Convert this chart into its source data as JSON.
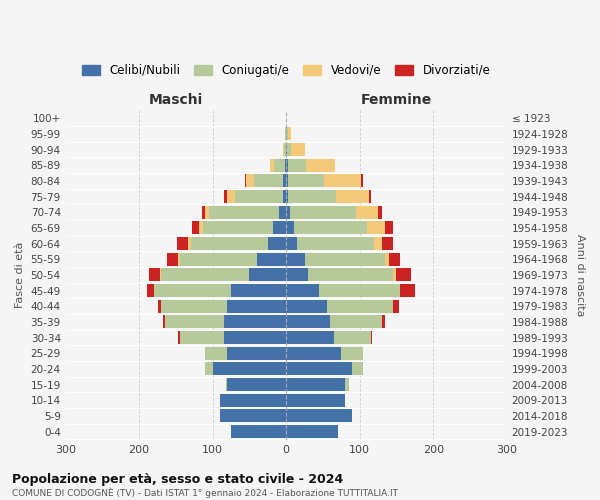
{
  "age_groups": [
    "0-4",
    "5-9",
    "10-14",
    "15-19",
    "20-24",
    "25-29",
    "30-34",
    "35-39",
    "40-44",
    "45-49",
    "50-54",
    "55-59",
    "60-64",
    "65-69",
    "70-74",
    "75-79",
    "80-84",
    "85-89",
    "90-94",
    "95-99",
    "100+"
  ],
  "birth_years": [
    "2019-2023",
    "2014-2018",
    "2009-2013",
    "2004-2008",
    "1999-2003",
    "1994-1998",
    "1989-1993",
    "1984-1988",
    "1979-1983",
    "1974-1978",
    "1969-1973",
    "1964-1968",
    "1959-1963",
    "1954-1958",
    "1949-1953",
    "1944-1948",
    "1939-1943",
    "1934-1938",
    "1929-1933",
    "1924-1928",
    "≤ 1923"
  ],
  "colors": {
    "celibi": "#4472a8",
    "coniugati": "#b5c99a",
    "vedovi": "#f5c97a",
    "divorziati": "#cc2222"
  },
  "males": {
    "celibi": [
      75,
      90,
      90,
      80,
      100,
      80,
      85,
      85,
      80,
      75,
      50,
      40,
      25,
      18,
      10,
      5,
      4,
      2,
      0,
      0,
      0
    ],
    "coniugati": [
      0,
      0,
      0,
      2,
      10,
      30,
      60,
      80,
      90,
      105,
      120,
      105,
      105,
      95,
      95,
      65,
      40,
      15,
      3,
      1,
      0
    ],
    "vedovi": [
      0,
      0,
      0,
      0,
      0,
      0,
      0,
      0,
      0,
      0,
      2,
      2,
      3,
      5,
      5,
      10,
      10,
      5,
      2,
      0,
      0
    ],
    "divorziati": [
      0,
      0,
      0,
      0,
      0,
      0,
      2,
      2,
      5,
      10,
      15,
      15,
      15,
      10,
      5,
      5,
      2,
      0,
      0,
      0,
      0
    ]
  },
  "females": {
    "nubili": [
      70,
      90,
      80,
      80,
      90,
      75,
      65,
      60,
      55,
      45,
      30,
      25,
      15,
      10,
      5,
      3,
      2,
      2,
      1,
      0,
      0
    ],
    "coniugate": [
      0,
      0,
      0,
      5,
      15,
      30,
      50,
      70,
      90,
      110,
      115,
      110,
      105,
      100,
      90,
      65,
      50,
      25,
      5,
      2,
      0
    ],
    "vedove": [
      0,
      0,
      0,
      0,
      0,
      0,
      0,
      0,
      0,
      0,
      5,
      5,
      10,
      25,
      30,
      45,
      50,
      40,
      20,
      5,
      0
    ],
    "divorziate": [
      0,
      0,
      0,
      0,
      0,
      0,
      2,
      5,
      8,
      20,
      20,
      15,
      15,
      10,
      5,
      3,
      2,
      0,
      0,
      0,
      0
    ]
  },
  "xlim": 300,
  "title": "Popolazione per età, sesso e stato civile - 2024",
  "subtitle": "COMUNE DI CODOGNÈ (TV) - Dati ISTAT 1° gennaio 2024 - Elaborazione TUTTITALIA.IT",
  "xlabel_left": "Maschi",
  "xlabel_right": "Femmine",
  "ylabel_left": "Fasce di età",
  "ylabel_right": "Anni di nascita",
  "legend_labels": [
    "Celibi/Nubili",
    "Coniugati/e",
    "Vedovi/e",
    "Divorziati/e"
  ],
  "background_color": "#f5f5f5"
}
